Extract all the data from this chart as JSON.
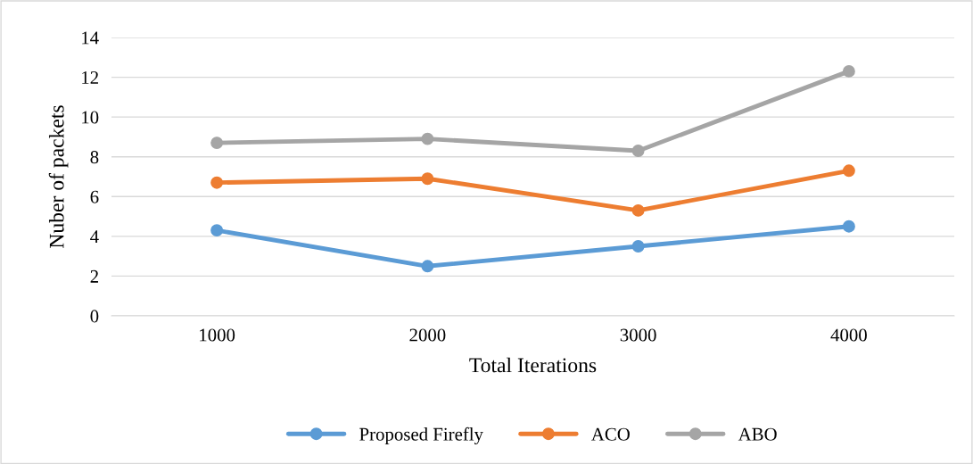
{
  "chart_data": {
    "type": "line",
    "xlabel": "Total Iterations",
    "ylabel": "Nuber of packets",
    "categories": [
      "1000",
      "2000",
      "3000",
      "4000"
    ],
    "series": [
      {
        "name": "Proposed Firefly",
        "color": "#5b9bd5",
        "values": [
          4.3,
          2.5,
          3.5,
          4.5
        ]
      },
      {
        "name": "ACO",
        "color": "#ed7d31",
        "values": [
          6.7,
          6.9,
          5.3,
          7.3
        ]
      },
      {
        "name": "ABO",
        "color": "#a5a5a5",
        "values": [
          8.7,
          8.9,
          8.3,
          12.3
        ]
      }
    ],
    "ylim": [
      0,
      14
    ],
    "yticks": [
      0,
      2,
      4,
      6,
      8,
      10,
      12,
      14
    ],
    "grid": "y",
    "legend": "bottom",
    "marker": "circle",
    "line_style": "solid"
  }
}
